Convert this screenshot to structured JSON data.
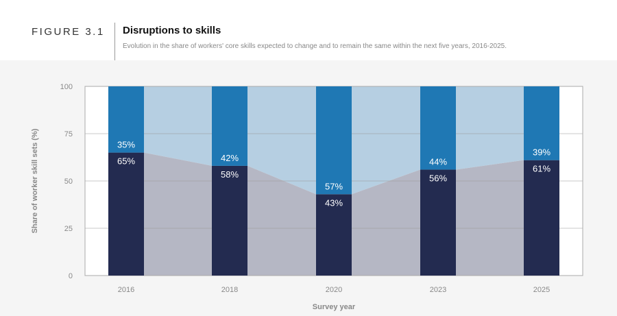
{
  "header": {
    "figure_label": "FIGURE 3.1",
    "title": "Disruptions to skills",
    "subtitle": "Evolution in the share of workers' core skills expected to change and to remain the same within the next five years, 2016-2025."
  },
  "chart_data": {
    "type": "bar",
    "stacked": true,
    "categories": [
      "2016",
      "2018",
      "2020",
      "2023",
      "2025"
    ],
    "series": [
      {
        "values": [
          65,
          58,
          43,
          56,
          61
        ],
        "labels": [
          "65%",
          "58%",
          "43%",
          "56%",
          "61%"
        ],
        "color": "#232b50",
        "area_color": "#b5b7c4"
      },
      {
        "values": [
          35,
          42,
          57,
          44,
          39
        ],
        "labels": [
          "35%",
          "42%",
          "57%",
          "44%",
          "39%"
        ],
        "color": "#1f78b4",
        "area_color": "#b6cfe2"
      }
    ],
    "xlabel": "Survey year",
    "ylabel": "Share of worker skill sets (%)",
    "ylim": [
      0,
      100
    ],
    "yticks": [
      "0",
      "25",
      "50",
      "75",
      "100"
    ],
    "grid": true
  }
}
